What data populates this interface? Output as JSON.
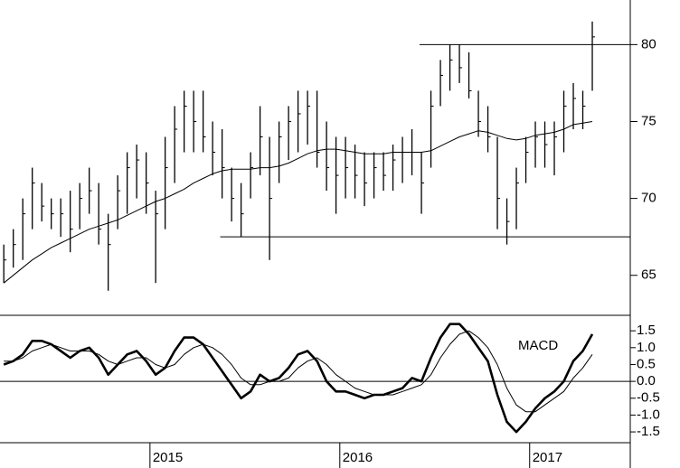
{
  "chart_data": [
    {
      "type": "ohlc",
      "color": "#000000",
      "x": [
        2014.23,
        2014.28,
        2014.33,
        2014.38,
        2014.43,
        2014.48,
        2014.53,
        2014.58,
        2014.63,
        2014.68,
        2014.73,
        2014.78,
        2014.83,
        2014.88,
        2014.93,
        2014.98,
        2015.03,
        2015.08,
        2015.13,
        2015.18,
        2015.23,
        2015.28,
        2015.33,
        2015.38,
        2015.43,
        2015.48,
        2015.53,
        2015.58,
        2015.63,
        2015.68,
        2015.73,
        2015.78,
        2015.83,
        2015.88,
        2015.93,
        2015.98,
        2016.03,
        2016.08,
        2016.13,
        2016.18,
        2016.23,
        2016.28,
        2016.33,
        2016.38,
        2016.43,
        2016.48,
        2016.53,
        2016.58,
        2016.63,
        2016.68,
        2016.73,
        2016.78,
        2016.83,
        2016.88,
        2016.93,
        2016.98,
        2017.03,
        2017.08,
        2017.13,
        2017.18,
        2017.23,
        2017.28,
        2017.33
      ],
      "high": [
        67,
        68,
        70,
        72,
        71,
        70,
        70,
        70.5,
        71,
        72,
        71,
        69,
        71.5,
        73,
        73.5,
        73,
        70.5,
        74,
        76,
        77,
        77,
        77,
        75,
        74.5,
        72,
        71,
        73,
        76,
        74,
        75,
        76,
        77,
        77,
        77,
        75,
        74,
        74,
        73.5,
        73,
        73,
        73,
        73.5,
        74,
        74.5,
        73,
        77,
        79,
        80,
        80,
        79.5,
        77,
        76,
        74,
        70,
        72,
        74,
        75,
        75,
        75,
        77,
        77.5,
        77,
        81.5
      ],
      "low": [
        64.5,
        65.5,
        66,
        68,
        68.5,
        68,
        67.5,
        66.5,
        68,
        69,
        67,
        64,
        68,
        69,
        70,
        69,
        64.5,
        68,
        71,
        73,
        73,
        73,
        71.5,
        70,
        68.5,
        67.5,
        70,
        71.5,
        66,
        71,
        72.5,
        73,
        73.5,
        72,
        70.5,
        69,
        70,
        70,
        69.5,
        70,
        70.5,
        70.5,
        71,
        71.5,
        69,
        72,
        76,
        77,
        77.5,
        76.5,
        74,
        73,
        68,
        67,
        68,
        71,
        72,
        72,
        71.5,
        73,
        74.5,
        74.5,
        77
      ],
      "close": [
        66,
        67,
        69,
        71,
        69.5,
        69,
        69,
        68,
        70,
        70.5,
        68,
        67,
        70.5,
        72,
        72.5,
        71,
        69,
        72,
        74.5,
        76,
        75,
        74,
        73,
        72,
        70,
        69,
        72,
        74,
        70,
        74,
        75,
        75.5,
        76,
        73,
        72,
        71.5,
        72,
        71.5,
        71,
        72,
        71.5,
        72.5,
        73,
        73,
        71,
        76,
        78,
        79,
        78.5,
        77,
        75,
        74,
        70,
        68.5,
        71,
        73,
        74,
        73.5,
        74,
        76,
        76.5,
        76,
        80.5
      ],
      "ma": [
        64.5,
        65,
        65.5,
        66,
        66.4,
        66.8,
        67.1,
        67.4,
        67.7,
        68,
        68.2,
        68.4,
        68.6,
        68.9,
        69.2,
        69.5,
        69.8,
        70,
        70.3,
        70.6,
        71,
        71.3,
        71.6,
        71.8,
        71.9,
        71.9,
        71.9,
        72,
        72,
        72.1,
        72.3,
        72.6,
        72.9,
        73.1,
        73.2,
        73.2,
        73.1,
        73,
        72.9,
        72.9,
        72.9,
        73,
        73,
        73,
        73,
        73.1,
        73.4,
        73.7,
        74,
        74.2,
        74.4,
        74.3,
        74.1,
        73.9,
        73.8,
        73.9,
        74.1,
        74.2,
        74.3,
        74.5,
        74.8,
        74.9,
        75
      ],
      "hlines": [
        {
          "value": 80,
          "from": 2016.42
        },
        {
          "value": 67.5,
          "from": 2015.37
        }
      ],
      "xlim": [
        2014.21,
        2017.53
      ],
      "ylim": [
        62.4,
        82.9
      ],
      "yticks": [
        65,
        70,
        75,
        80
      ]
    },
    {
      "type": "line",
      "label": "MACD",
      "x": [
        2014.23,
        2014.28,
        2014.33,
        2014.38,
        2014.43,
        2014.48,
        2014.53,
        2014.58,
        2014.63,
        2014.68,
        2014.73,
        2014.78,
        2014.83,
        2014.88,
        2014.93,
        2014.98,
        2015.03,
        2015.08,
        2015.13,
        2015.18,
        2015.23,
        2015.28,
        2015.33,
        2015.38,
        2015.43,
        2015.48,
        2015.53,
        2015.58,
        2015.63,
        2015.68,
        2015.73,
        2015.78,
        2015.83,
        2015.88,
        2015.93,
        2015.98,
        2016.03,
        2016.08,
        2016.13,
        2016.18,
        2016.23,
        2016.28,
        2016.33,
        2016.38,
        2016.43,
        2016.48,
        2016.53,
        2016.58,
        2016.63,
        2016.68,
        2016.73,
        2016.78,
        2016.83,
        2016.88,
        2016.93,
        2016.98,
        2017.03,
        2017.08,
        2017.13,
        2017.18,
        2017.23,
        2017.28,
        2017.33
      ],
      "macd": [
        0.5,
        0.6,
        0.8,
        1.2,
        1.2,
        1.1,
        0.9,
        0.7,
        0.9,
        1.0,
        0.7,
        0.2,
        0.5,
        0.8,
        0.9,
        0.6,
        0.2,
        0.4,
        0.9,
        1.3,
        1.3,
        1.1,
        0.7,
        0.3,
        -0.1,
        -0.5,
        -0.3,
        0.2,
        0,
        0.1,
        0.4,
        0.8,
        0.9,
        0.6,
        0,
        -0.3,
        -0.3,
        -0.4,
        -0.5,
        -0.4,
        -0.4,
        -0.3,
        -0.2,
        0.1,
        0,
        0.7,
        1.3,
        1.7,
        1.7,
        1.4,
        1.0,
        0.6,
        -0.4,
        -1.2,
        -1.5,
        -1.2,
        -0.8,
        -0.5,
        -0.3,
        0,
        0.6,
        0.9,
        1.4
      ],
      "signal": [
        0.6,
        0.6,
        0.7,
        0.9,
        1.0,
        1.1,
        1.0,
        0.9,
        0.9,
        0.9,
        0.8,
        0.6,
        0.5,
        0.6,
        0.7,
        0.7,
        0.5,
        0.4,
        0.5,
        0.8,
        1.0,
        1.1,
        1.0,
        0.8,
        0.5,
        0.1,
        -0.1,
        -0.1,
        0,
        0,
        0.1,
        0.4,
        0.6,
        0.7,
        0.5,
        0.2,
        0,
        -0.2,
        -0.3,
        -0.4,
        -0.4,
        -0.4,
        -0.3,
        -0.2,
        -0.1,
        0.2,
        0.7,
        1.1,
        1.4,
        1.5,
        1.3,
        1.0,
        0.5,
        -0.2,
        -0.7,
        -0.9,
        -0.9,
        -0.7,
        -0.5,
        -0.3,
        0.1,
        0.4,
        0.8
      ],
      "xlim": [
        2014.21,
        2017.53
      ],
      "ylim": [
        -1.82,
        1.96
      ],
      "yticks": [
        {
          "value": 1.5,
          "label": "1.5"
        },
        {
          "value": 1,
          "label": "1.0"
        },
        {
          "value": 0.5,
          "label": "0.5"
        },
        {
          "value": 0,
          "label": "0.0"
        },
        {
          "value": -0.5,
          "label": "-0.5"
        },
        {
          "value": -1,
          "label": "-1.0"
        },
        {
          "value": -1.5,
          "label": "-1.5"
        }
      ],
      "xticks": [
        2015,
        2016,
        2017
      ]
    }
  ]
}
